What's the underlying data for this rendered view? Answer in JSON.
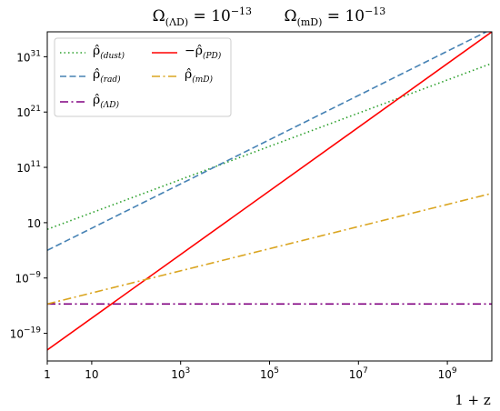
{
  "chart_data": {
    "type": "line",
    "title": "Ω(ΛD) = 10^−13      Ω(mD) = 10^−13",
    "title_parts": {
      "left": {
        "base": "Ω",
        "sub": "(ΛD)",
        "eq": " = 10",
        "exp": "−13"
      },
      "right": {
        "base": "Ω",
        "sub": "(mD)",
        "eq": " = 10",
        "exp": "−13"
      }
    },
    "xlabel": "1 + z",
    "ylabel": "",
    "x_scale": "log",
    "y_scale": "log",
    "xlim": [
      1,
      10000000000
    ],
    "ylim_exp": [
      -24,
      35.5
    ],
    "x_ticks": [
      {
        "value": 1,
        "base": "1",
        "exp": ""
      },
      {
        "value": 10,
        "base": "10",
        "exp": ""
      },
      {
        "value": 1000,
        "base": "10",
        "exp": "3"
      },
      {
        "value": 100000,
        "base": "10",
        "exp": "5"
      },
      {
        "value": 10000000,
        "base": "10",
        "exp": "7"
      },
      {
        "value": 1000000000,
        "base": "10",
        "exp": "9"
      }
    ],
    "y_ticks": [
      {
        "exp_value": 31,
        "base": "10",
        "exp": "31"
      },
      {
        "exp_value": 21,
        "base": "10",
        "exp": "21"
      },
      {
        "exp_value": 11,
        "base": "10",
        "exp": "11"
      },
      {
        "exp_value": 1,
        "base": "10",
        "exp": ""
      },
      {
        "exp_value": -9,
        "base": "10",
        "exp": "−9"
      },
      {
        "exp_value": -19,
        "base": "10",
        "exp": "−19"
      }
    ],
    "legend_placement": "upper-left",
    "grid": false,
    "series": [
      {
        "name": "ρ̂(dust)",
        "label": {
          "base": "ρ̂",
          "sub": "(dust)"
        },
        "color": "#2ca02c",
        "style": "dotted",
        "log10_y_at_x1": -0.2,
        "log_slope": 3
      },
      {
        "name": "ρ̂(rad)",
        "label": {
          "base": "ρ̂",
          "sub": "(rad)"
        },
        "color": "#4682b4",
        "style": "dashed",
        "log10_y_at_x1": -4,
        "log_slope": 4
      },
      {
        "name": "ρ̂(ΛD)",
        "label": {
          "base": "ρ̂",
          "sub": "(ΛD)"
        },
        "color": "#800080",
        "style": "dashdot",
        "log10_y_at_x1": -13.7,
        "log_slope": 0
      },
      {
        "name": "−ρ̂(PD)",
        "label": {
          "base": "−ρ̂",
          "sub": "(PD)"
        },
        "color": "#ff0000",
        "style": "solid",
        "log10_y_at_x1": -22,
        "log_slope": 5.75
      },
      {
        "name": "ρ̂(mD)",
        "label": {
          "base": "ρ̂",
          "sub": "(mD)"
        },
        "color": "#daa520",
        "style": "dashdot",
        "log10_y_at_x1": -13.7,
        "log_slope": 2
      }
    ]
  }
}
